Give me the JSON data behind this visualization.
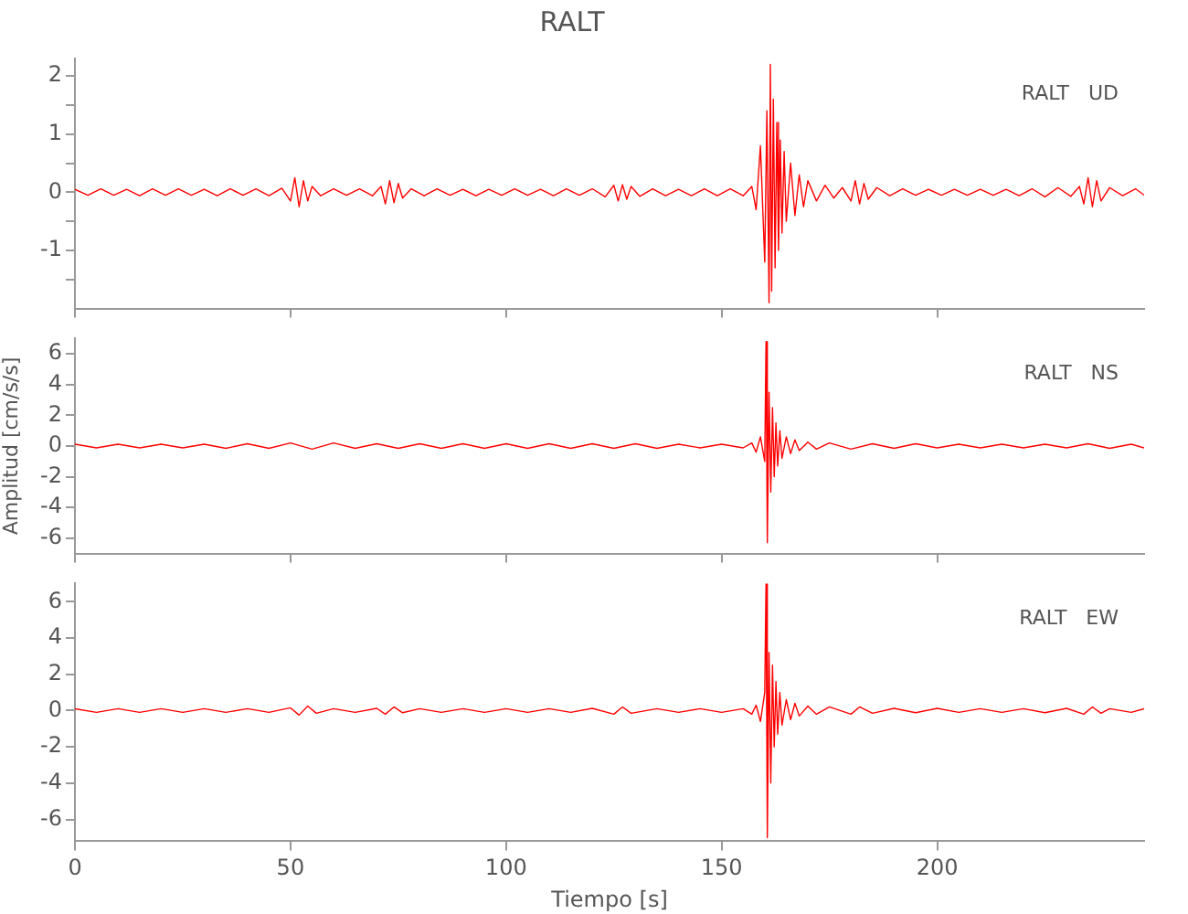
{
  "chart_data": [
    {
      "type": "line",
      "title": "RALT",
      "annotations": [
        "RALT   UD"
      ],
      "marker": "none",
      "grid": false,
      "tick_labels": "y",
      "xlim": [
        0,
        248
      ],
      "xticks": [
        {
          "value": 0,
          "label": null
        },
        {
          "value": 50,
          "label": null
        },
        {
          "value": 100,
          "label": null
        },
        {
          "value": 150,
          "label": null
        },
        {
          "value": 200,
          "label": null
        }
      ],
      "ylim": [
        -2,
        2.3
      ],
      "yticks": [
        {
          "value": -1.5,
          "label": null
        },
        -1,
        {
          "value": -0.5,
          "label": null
        },
        0,
        {
          "value": 0.5,
          "label": null
        },
        1,
        {
          "value": 1.5,
          "label": null
        },
        2
      ],
      "series": [
        {
          "color": "#ff0000",
          "x": [
            0,
            3,
            6,
            9,
            12,
            15,
            18,
            21,
            24,
            27,
            30,
            33,
            36,
            39,
            42,
            45,
            48,
            50,
            51,
            52,
            53,
            54,
            55,
            57,
            60,
            63,
            66,
            69,
            71,
            72,
            73,
            74,
            75,
            76,
            78,
            81,
            84,
            87,
            90,
            93,
            96,
            99,
            102,
            105,
            108,
            111,
            114,
            117,
            120,
            123,
            125,
            126,
            127,
            128,
            129,
            131,
            134,
            137,
            140,
            143,
            146,
            149,
            152,
            155,
            157,
            158,
            159,
            160,
            160.5,
            161,
            161.3,
            161.6,
            162,
            162.4,
            162.8,
            163.2,
            163.6,
            164,
            164.5,
            165,
            166,
            167,
            168,
            169,
            170,
            172,
            174,
            176,
            178,
            180,
            181,
            182,
            183,
            184,
            186,
            189,
            192,
            195,
            198,
            201,
            204,
            207,
            210,
            213,
            216,
            219,
            222,
            225,
            228,
            231,
            233,
            234,
            235,
            236,
            237,
            238,
            240,
            243,
            246,
            248
          ],
          "values": [
            0.05,
            -0.05,
            0.06,
            -0.05,
            0.05,
            -0.06,
            0.06,
            -0.05,
            0.06,
            -0.05,
            0.05,
            -0.06,
            0.06,
            -0.05,
            0.06,
            -0.06,
            0.07,
            -0.15,
            0.25,
            -0.25,
            0.2,
            -0.15,
            0.1,
            -0.06,
            0.06,
            -0.05,
            0.06,
            -0.06,
            0.1,
            -0.2,
            0.2,
            -0.18,
            0.15,
            -0.1,
            0.06,
            -0.06,
            0.06,
            -0.05,
            0.05,
            -0.06,
            0.05,
            -0.05,
            0.06,
            -0.05,
            0.05,
            -0.06,
            0.06,
            -0.05,
            0.06,
            -0.08,
            0.12,
            -0.15,
            0.13,
            -0.12,
            0.1,
            -0.07,
            0.06,
            -0.06,
            0.05,
            -0.06,
            0.06,
            -0.06,
            0.06,
            -0.06,
            0.1,
            -0.3,
            0.8,
            -1.2,
            1.4,
            -1.9,
            2.2,
            -1.7,
            1.6,
            -1.3,
            1.2,
            -1.0,
            0.9,
            -0.7,
            0.7,
            -0.5,
            0.5,
            -0.4,
            0.3,
            -0.25,
            0.2,
            -0.15,
            0.12,
            -0.1,
            0.08,
            -0.15,
            0.2,
            -0.2,
            0.15,
            -0.12,
            0.08,
            -0.06,
            0.06,
            -0.05,
            0.05,
            -0.05,
            0.05,
            -0.05,
            0.05,
            -0.05,
            0.05,
            -0.06,
            0.06,
            -0.08,
            0.08,
            -0.07,
            0.1,
            -0.2,
            0.25,
            -0.25,
            0.2,
            -0.15,
            0.08,
            -0.06,
            0.06,
            -0.05
          ]
        }
      ]
    },
    {
      "type": "line",
      "ylabel": "Amplitud [cm/s/s]",
      "annotations": [
        "RALT   NS"
      ],
      "marker": "none",
      "grid": false,
      "tick_labels": "y",
      "xlim": [
        0,
        248
      ],
      "xticks": [
        {
          "value": 0,
          "label": null
        },
        {
          "value": 50,
          "label": null
        },
        {
          "value": 100,
          "label": null
        },
        {
          "value": 150,
          "label": null
        },
        {
          "value": 200,
          "label": null
        }
      ],
      "ylim": [
        -7,
        7
      ],
      "yticks": [
        -6,
        -4,
        -2,
        0,
        2,
        4,
        6
      ],
      "series": [
        {
          "color": "#ff0000",
          "x": [
            0,
            5,
            10,
            15,
            20,
            25,
            30,
            35,
            40,
            45,
            50,
            55,
            60,
            65,
            70,
            75,
            80,
            85,
            90,
            95,
            100,
            105,
            110,
            115,
            120,
            125,
            130,
            135,
            140,
            145,
            150,
            155,
            157,
            158,
            159,
            160,
            160.3,
            160.6,
            161,
            161.4,
            161.8,
            162.2,
            162.6,
            163,
            163.5,
            164,
            165,
            166,
            167,
            168,
            170,
            172,
            175,
            180,
            185,
            190,
            195,
            200,
            205,
            210,
            215,
            220,
            225,
            230,
            235,
            240,
            245,
            248
          ],
          "values": [
            0.12,
            -0.12,
            0.12,
            -0.12,
            0.12,
            -0.12,
            0.12,
            -0.15,
            0.15,
            -0.15,
            0.2,
            -0.2,
            0.2,
            -0.15,
            0.15,
            -0.15,
            0.15,
            -0.15,
            0.15,
            -0.15,
            0.15,
            -0.15,
            0.15,
            -0.15,
            0.15,
            -0.15,
            0.15,
            -0.15,
            0.12,
            -0.12,
            0.12,
            -0.12,
            0.2,
            -0.4,
            0.6,
            -1.0,
            6.8,
            -6.3,
            3.5,
            -3.0,
            2.5,
            -2.0,
            1.5,
            -1.3,
            1.0,
            -0.8,
            0.6,
            -0.5,
            0.4,
            -0.3,
            0.25,
            -0.2,
            0.2,
            -0.2,
            0.15,
            -0.15,
            0.15,
            -0.12,
            0.12,
            -0.12,
            0.12,
            -0.12,
            0.12,
            -0.12,
            0.15,
            -0.15,
            0.12,
            -0.12
          ]
        }
      ]
    },
    {
      "type": "line",
      "xlabel": "Tiempo [s]",
      "annotations": [
        "RALT   EW"
      ],
      "marker": "none",
      "grid": false,
      "xlim": [
        0,
        248
      ],
      "xticks": [
        0,
        50,
        100,
        150,
        200
      ],
      "ylim": [
        -7.2,
        7
      ],
      "yticks": [
        -6,
        -4,
        -2,
        0,
        2,
        4,
        6
      ],
      "series": [
        {
          "color": "#ff0000",
          "x": [
            0,
            5,
            10,
            15,
            20,
            25,
            30,
            35,
            40,
            45,
            50,
            52,
            54,
            56,
            60,
            65,
            70,
            72,
            74,
            76,
            80,
            85,
            90,
            95,
            100,
            105,
            110,
            115,
            120,
            125,
            127,
            129,
            135,
            140,
            145,
            150,
            155,
            157,
            158,
            159,
            160,
            160.3,
            160.6,
            161,
            161.4,
            161.8,
            162.2,
            162.6,
            163,
            163.5,
            164,
            165,
            166,
            167,
            168,
            170,
            172,
            175,
            180,
            182,
            185,
            190,
            195,
            200,
            205,
            210,
            215,
            220,
            225,
            230,
            234,
            236,
            238,
            240,
            245,
            248
          ],
          "values": [
            0.1,
            -0.1,
            0.1,
            -0.1,
            0.1,
            -0.1,
            0.1,
            -0.1,
            0.1,
            -0.1,
            0.15,
            -0.25,
            0.25,
            -0.15,
            0.1,
            -0.1,
            0.12,
            -0.2,
            0.2,
            -0.12,
            0.1,
            -0.1,
            0.1,
            -0.1,
            0.1,
            -0.1,
            0.1,
            -0.1,
            0.12,
            -0.2,
            0.2,
            -0.15,
            0.1,
            -0.1,
            0.1,
            -0.1,
            0.1,
            -0.2,
            0.3,
            -0.6,
            1.0,
            7.0,
            -7.0,
            3.2,
            -4.0,
            2.5,
            -2.0,
            1.6,
            -1.3,
            1.0,
            -0.8,
            0.6,
            -0.5,
            0.4,
            -0.3,
            0.25,
            -0.2,
            0.2,
            -0.2,
            0.2,
            -0.15,
            0.12,
            -0.12,
            0.12,
            -0.1,
            0.1,
            -0.1,
            0.1,
            -0.12,
            0.12,
            -0.2,
            0.2,
            -0.15,
            0.1,
            -0.1,
            0.1
          ]
        }
      ]
    }
  ]
}
